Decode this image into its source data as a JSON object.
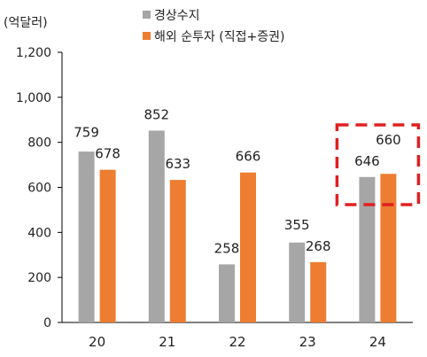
{
  "chart_data": {
    "type": "bar",
    "unit_label": "(억달러)",
    "categories": [
      "20",
      "21",
      "22",
      "23",
      "24"
    ],
    "series": [
      {
        "name": "경상수지",
        "color": "#a6a6a6",
        "values": [
          759,
          852,
          258,
          355,
          646
        ]
      },
      {
        "name": "해외 순투자 (직접+증권)",
        "color": "#ed7d31",
        "values": [
          678,
          633,
          666,
          268,
          660
        ]
      }
    ],
    "data_labels": [
      [
        "759",
        "852",
        "258",
        "355",
        "646"
      ],
      [
        "678",
        "633",
        "666",
        "268",
        "660"
      ]
    ],
    "y_ticks": [
      {
        "value": 0,
        "label": "0"
      },
      {
        "value": 200,
        "label": "200"
      },
      {
        "value": 400,
        "label": "400"
      },
      {
        "value": 600,
        "label": "600"
      },
      {
        "value": 800,
        "label": "800"
      },
      {
        "value": 1000,
        "label": "1,000"
      },
      {
        "value": 1200,
        "label": "1,200"
      }
    ],
    "ylim": [
      0,
      1200
    ],
    "grid": false,
    "legend_position": "top",
    "highlight": {
      "category": "24",
      "style": "dashed-box",
      "color": "#e02020"
    }
  }
}
